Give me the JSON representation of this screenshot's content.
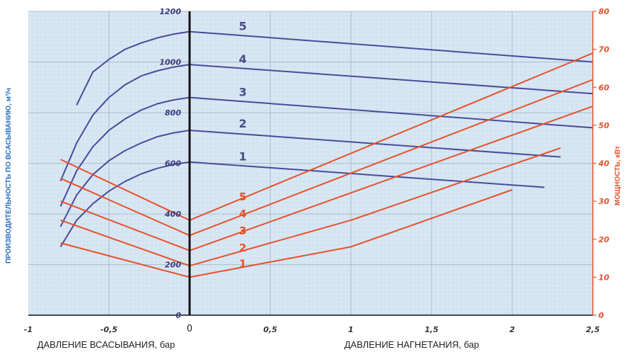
{
  "chart_data": {
    "type": "line",
    "x_ticks": [
      -1,
      -0.5,
      0,
      0.5,
      1,
      1.5,
      2,
      2.5
    ],
    "x_tick_labels": [
      "-1",
      "-0,5",
      "0",
      "0,5",
      "1",
      "1,5",
      "2",
      "2,5"
    ],
    "xlim": [
      -1,
      2.5
    ],
    "xlabel_left": "ДАВЛЕНИЕ ВСАСЫВАНИЯ, бар",
    "xlabel_right": "ДАВЛЕНИЕ НАГНЕТАНИЯ, бар",
    "y_left": {
      "label": "ПРОИЗВОДИТЕЛЬНОСТЬ ПО ВСАСЫВАНИЮ, м³/ч",
      "lim": [
        0,
        1200
      ],
      "ticks": [
        0,
        200,
        400,
        600,
        800,
        1000,
        1200
      ]
    },
    "y_right": {
      "label": "МОЩНОСТЬ, кВт",
      "lim": [
        0,
        80
      ],
      "ticks": [
        0,
        10,
        20,
        30,
        40,
        50,
        60,
        70,
        80
      ]
    },
    "grid": true,
    "colors": {
      "flow": "#4a4a9a",
      "power": "#e8502a",
      "axis": "#111111",
      "background": "#d7e6f2"
    },
    "flow_series": [
      {
        "name": "1",
        "axis": "left",
        "x": [
          -0.8,
          -0.7,
          -0.6,
          -0.5,
          -0.4,
          -0.3,
          -0.2,
          -0.1,
          0,
          2.2
        ],
        "y": [
          270,
          375,
          440,
          490,
          528,
          558,
          580,
          595,
          605,
          505
        ]
      },
      {
        "name": "2",
        "axis": "left",
        "x": [
          -0.8,
          -0.7,
          -0.6,
          -0.5,
          -0.4,
          -0.3,
          -0.2,
          -0.1,
          0,
          2.3
        ],
        "y": [
          350,
          475,
          555,
          610,
          650,
          680,
          705,
          720,
          730,
          625
        ]
      },
      {
        "name": "3",
        "axis": "left",
        "x": [
          -0.8,
          -0.7,
          -0.6,
          -0.5,
          -0.4,
          -0.3,
          -0.2,
          -0.1,
          0,
          2.5
        ],
        "y": [
          430,
          570,
          665,
          730,
          775,
          810,
          835,
          850,
          860,
          740
        ]
      },
      {
        "name": "4",
        "axis": "left",
        "x": [
          -0.8,
          -0.7,
          -0.6,
          -0.5,
          -0.4,
          -0.3,
          -0.2,
          -0.1,
          0,
          2.5
        ],
        "y": [
          530,
          680,
          790,
          860,
          910,
          945,
          965,
          980,
          990,
          875
        ]
      },
      {
        "name": "5",
        "axis": "left",
        "x": [
          -0.7,
          -0.6,
          -0.5,
          -0.4,
          -0.3,
          -0.2,
          -0.1,
          0,
          2.5
        ],
        "y": [
          830,
          960,
          1010,
          1050,
          1075,
          1095,
          1110,
          1120,
          1000
        ]
      }
    ],
    "power_series": [
      {
        "name": "1",
        "axis": "right",
        "x": [
          -0.8,
          0,
          1,
          2
        ],
        "y": [
          19,
          10,
          18,
          33
        ]
      },
      {
        "name": "2",
        "axis": "right",
        "x": [
          -0.8,
          0,
          1,
          2.3
        ],
        "y": [
          25,
          13,
          25,
          44
        ]
      },
      {
        "name": "3",
        "axis": "right",
        "x": [
          -0.8,
          0,
          2.5
        ],
        "y": [
          30,
          17,
          55
        ]
      },
      {
        "name": "4",
        "axis": "right",
        "x": [
          -0.8,
          0,
          2.5
        ],
        "y": [
          36,
          21,
          62
        ]
      },
      {
        "name": "5",
        "axis": "right",
        "x": [
          -0.8,
          0,
          2.5
        ],
        "y": [
          41,
          25,
          69
        ]
      }
    ],
    "flow_labels": [
      {
        "text": "1",
        "x": 0.33,
        "y": 600
      },
      {
        "text": "2",
        "x": 0.33,
        "y": 730
      },
      {
        "text": "3",
        "x": 0.33,
        "y": 855
      },
      {
        "text": "4",
        "x": 0.33,
        "y": 985
      },
      {
        "text": "5",
        "x": 0.33,
        "y": 1115
      }
    ],
    "power_labels": [
      {
        "text": "1",
        "x": 0.33,
        "y": 11.8
      },
      {
        "text": "2",
        "x": 0.33,
        "y": 16
      },
      {
        "text": "3",
        "x": 0.33,
        "y": 20.5
      },
      {
        "text": "4",
        "x": 0.33,
        "y": 25
      },
      {
        "text": "5",
        "x": 0.33,
        "y": 29.5
      }
    ]
  }
}
